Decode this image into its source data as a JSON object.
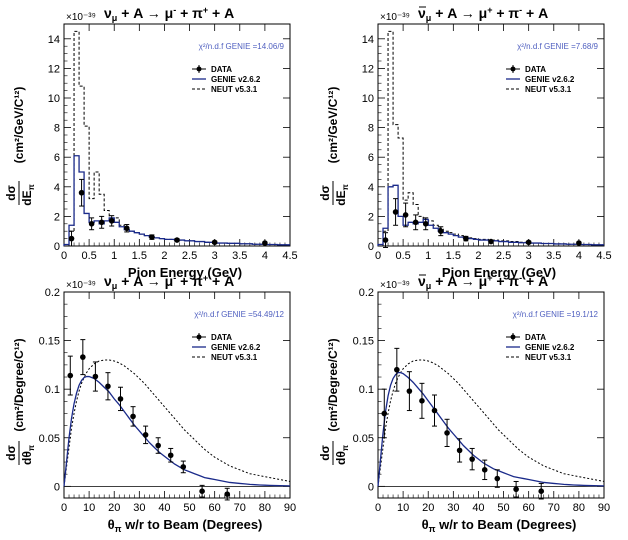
{
  "chart_data": [
    {
      "type": "line",
      "title": "ν_μ + A → μ⁻ + π⁺ + A",
      "title_parts": [
        "ν",
        "μ",
        " + A → μ",
        "-",
        " + π",
        "+",
        " + A"
      ],
      "title_bar": false,
      "xlabel": "Pion Energy (GeV)",
      "ylabel_num": "dσ",
      "ylabel_den": "dE",
      "ylabel_den_sub": "π",
      "ylabel_units": "(cm²/GeV/C¹²)",
      "scale_label": "×10⁻³⁹",
      "chi2_label": "χ²/n.d.f GENIE =14.06/9",
      "xlim": [
        0,
        4.5
      ],
      "ylim": [
        0,
        15
      ],
      "xticks": [
        0,
        0.5,
        1,
        1.5,
        2,
        2.5,
        3,
        3.5,
        4,
        4.5
      ],
      "xtick_labels": [
        "0",
        "0.5",
        "1",
        "1.5",
        "2",
        "2.5",
        "3",
        "3.5",
        "4",
        "4.5"
      ],
      "yticks": [
        0,
        2,
        4,
        6,
        8,
        10,
        12,
        14
      ],
      "ytick_labels": [
        "0",
        "2",
        "4",
        "6",
        "8",
        "10",
        "12",
        "14"
      ],
      "zero_line": false,
      "legend": [
        "DATA",
        "GENIE v2.6.2",
        "NEUT v5.3.1"
      ],
      "data": {
        "x": [
          0.15,
          0.35,
          0.55,
          0.75,
          0.95,
          1.25,
          1.75,
          2.25,
          3.0,
          4.0
        ],
        "y": [
          0.5,
          3.6,
          1.5,
          1.6,
          1.7,
          1.2,
          0.6,
          0.4,
          0.25,
          0.2
        ],
        "err": [
          0.5,
          0.9,
          0.4,
          0.4,
          0.35,
          0.25,
          0.15,
          0.1,
          0.08,
          0.06
        ]
      },
      "genie": {
        "edges": [
          0,
          0.1,
          0.2,
          0.3,
          0.4,
          0.5,
          0.6,
          0.7,
          0.8,
          0.9,
          1.0,
          1.1,
          1.2,
          1.3,
          1.4,
          1.5,
          1.6,
          1.7,
          1.8,
          1.9,
          2.0,
          2.2,
          2.4,
          2.6,
          2.8,
          3.0,
          3.25,
          3.5,
          3.75,
          4.0,
          4.25,
          4.5
        ],
        "values": [
          0.1,
          1.4,
          6.1,
          5.0,
          2.2,
          1.6,
          1.7,
          1.5,
          1.7,
          1.9,
          1.6,
          1.3,
          1.1,
          1.0,
          0.9,
          0.8,
          0.7,
          0.6,
          0.55,
          0.5,
          0.45,
          0.4,
          0.35,
          0.3,
          0.25,
          0.2,
          0.18,
          0.15,
          0.12,
          0.1,
          0.08
        ]
      },
      "neut": {
        "edges": [
          0,
          0.1,
          0.2,
          0.3,
          0.4,
          0.5,
          0.6,
          0.7,
          0.8,
          0.9,
          1.0,
          1.1,
          1.2,
          1.3,
          1.4,
          1.5,
          1.6,
          1.7,
          1.8,
          1.9,
          2.0,
          2.2,
          2.4,
          2.6,
          2.8,
          3.0,
          3.25,
          3.5,
          3.75,
          4.0,
          4.25,
          4.5
        ],
        "values": [
          0.0,
          1.0,
          14.5,
          10.8,
          8.1,
          3.2,
          5.0,
          3.5,
          2.4,
          1.6,
          1.9,
          1.4,
          1.2,
          1.0,
          0.9,
          0.8,
          0.7,
          0.6,
          0.55,
          0.5,
          0.45,
          0.4,
          0.35,
          0.3,
          0.25,
          0.2,
          0.17,
          0.14,
          0.12,
          0.1,
          0.08
        ]
      }
    },
    {
      "type": "line",
      "title": "ν̄_μ + A → μ⁺ + π⁻ + A",
      "title_parts": [
        "ν",
        "μ",
        " + A → μ",
        "+",
        " + π",
        "-",
        " + A"
      ],
      "title_bar": true,
      "xlabel": "Pion Energy (GeV)",
      "ylabel_num": "dσ",
      "ylabel_den": "dE",
      "ylabel_den_sub": "π",
      "ylabel_units": "(cm²/GeV/C¹²)",
      "scale_label": "×10⁻³⁹",
      "chi2_label": "χ²/n.d.f GENIE =7.68/9",
      "xlim": [
        0,
        4.5
      ],
      "ylim": [
        0,
        15
      ],
      "xticks": [
        0,
        0.5,
        1,
        1.5,
        2,
        2.5,
        3,
        3.5,
        4,
        4.5
      ],
      "xtick_labels": [
        "0",
        "0.5",
        "1",
        "1.5",
        "2",
        "2.5",
        "3",
        "3.5",
        "4",
        "4.5"
      ],
      "yticks": [
        0,
        2,
        4,
        6,
        8,
        10,
        12,
        14
      ],
      "ytick_labels": [
        "0",
        "2",
        "4",
        "6",
        "8",
        "10",
        "12",
        "14"
      ],
      "zero_line": false,
      "legend": [
        "DATA",
        "GENIE v2.6.2",
        "NEUT v5.3.1"
      ],
      "data": {
        "x": [
          0.15,
          0.35,
          0.55,
          0.75,
          0.95,
          1.25,
          1.75,
          2.25,
          3.0,
          4.0
        ],
        "y": [
          0.4,
          2.3,
          2.1,
          1.6,
          1.5,
          1.0,
          0.5,
          0.3,
          0.25,
          0.2
        ],
        "err": [
          0.5,
          0.9,
          0.8,
          0.5,
          0.4,
          0.3,
          0.15,
          0.1,
          0.08,
          0.06
        ]
      },
      "genie": {
        "edges": [
          0,
          0.1,
          0.2,
          0.3,
          0.4,
          0.5,
          0.6,
          0.7,
          0.8,
          0.9,
          1.0,
          1.1,
          1.2,
          1.3,
          1.4,
          1.5,
          1.6,
          1.7,
          1.8,
          1.9,
          2.0,
          2.2,
          2.4,
          2.6,
          2.8,
          3.0,
          3.25,
          3.5,
          3.75,
          4.0,
          4.25,
          4.5
        ],
        "values": [
          0.1,
          1.2,
          4.0,
          4.1,
          2.0,
          1.4,
          1.6,
          1.5,
          1.6,
          1.8,
          1.4,
          1.2,
          1.0,
          0.9,
          0.8,
          0.7,
          0.6,
          0.55,
          0.5,
          0.45,
          0.4,
          0.35,
          0.3,
          0.25,
          0.22,
          0.2,
          0.17,
          0.14,
          0.12,
          0.1,
          0.08
        ]
      },
      "neut": {
        "edges": [
          0,
          0.1,
          0.2,
          0.3,
          0.4,
          0.5,
          0.6,
          0.7,
          0.8,
          0.9,
          1.0,
          1.1,
          1.2,
          1.3,
          1.4,
          1.5,
          1.6,
          1.7,
          1.8,
          1.9,
          2.0,
          2.2,
          2.4,
          2.6,
          2.8,
          3.0,
          3.25,
          3.5,
          3.75,
          4.0,
          4.25,
          4.5
        ],
        "values": [
          0.0,
          1.0,
          14.5,
          8.2,
          7.3,
          3.1,
          3.6,
          2.8,
          2.0,
          1.6,
          1.7,
          1.4,
          1.2,
          1.0,
          0.9,
          0.8,
          0.7,
          0.6,
          0.55,
          0.5,
          0.45,
          0.4,
          0.35,
          0.3,
          0.25,
          0.2,
          0.17,
          0.14,
          0.12,
          0.1,
          0.08
        ]
      }
    },
    {
      "type": "line",
      "title": "ν_μ + A → μ⁻ + π⁺ + A",
      "title_parts": [
        "ν",
        "μ",
        " + A → μ",
        "-",
        " + π",
        "+",
        " + A"
      ],
      "title_bar": false,
      "xlabel": "θ_π w/r to Beam (Degrees)",
      "ylabel_num": "dσ",
      "ylabel_den": "dθ",
      "ylabel_den_sub": "π",
      "ylabel_units": "(cm²/Degree/C¹²)",
      "scale_label": "×10⁻³⁹",
      "chi2_label": "χ²/n.d.f GENIE =54.49/12",
      "xlim": [
        0,
        90
      ],
      "ylim": [
        -0.012,
        0.2
      ],
      "xticks": [
        0,
        10,
        20,
        30,
        40,
        50,
        60,
        70,
        80,
        90
      ],
      "xtick_labels": [
        "0",
        "10",
        "20",
        "30",
        "40",
        "50",
        "60",
        "70",
        "80",
        "90"
      ],
      "yticks": [
        0,
        0.05,
        0.1,
        0.15,
        0.2
      ],
      "ytick_labels": [
        "0",
        "0.05",
        "0.1",
        "0.15",
        "0.2"
      ],
      "zero_line": true,
      "legend": [
        "DATA",
        "GENIE v2.6.2",
        "NEUT v5.3.1"
      ],
      "data": {
        "x": [
          2.5,
          7.5,
          12.5,
          17.5,
          22.5,
          27.5,
          32.5,
          37.5,
          42.5,
          47.5,
          55,
          65
        ],
        "y": [
          0.114,
          0.133,
          0.113,
          0.103,
          0.09,
          0.072,
          0.053,
          0.042,
          0.032,
          0.02,
          -0.005,
          -0.008
        ],
        "err": [
          0.02,
          0.018,
          0.015,
          0.014,
          0.012,
          0.01,
          0.009,
          0.008,
          0.007,
          0.006,
          0.006,
          0.006
        ]
      },
      "genie_curve": {
        "x": [
          0,
          1,
          2,
          3,
          4,
          5,
          6,
          7,
          8,
          9,
          10,
          12,
          14,
          16,
          18,
          20,
          22,
          24,
          26,
          28,
          30,
          32,
          34,
          36,
          38,
          40,
          42,
          44,
          46,
          48,
          50,
          52,
          54,
          56,
          58,
          60,
          62,
          64,
          66,
          68,
          70,
          72,
          74,
          76,
          78,
          80,
          82,
          84,
          86,
          88,
          90
        ],
        "y": [
          0.0,
          0.025,
          0.05,
          0.07,
          0.085,
          0.096,
          0.104,
          0.109,
          0.112,
          0.113,
          0.113,
          0.111,
          0.107,
          0.102,
          0.097,
          0.09,
          0.084,
          0.077,
          0.07,
          0.063,
          0.057,
          0.051,
          0.045,
          0.04,
          0.035,
          0.031,
          0.027,
          0.023,
          0.02,
          0.017,
          0.015,
          0.013,
          0.011,
          0.009,
          0.008,
          0.007,
          0.006,
          0.005,
          0.004,
          0.0035,
          0.003,
          0.0025,
          0.002,
          0.0017,
          0.0014,
          0.0012,
          0.001,
          0.0008,
          0.0007,
          0.0006,
          0.0005
        ]
      },
      "neut_curve": {
        "x": [
          0,
          1,
          2,
          3,
          4,
          5,
          6,
          7,
          8,
          9,
          10,
          12,
          14,
          16,
          18,
          20,
          22,
          24,
          26,
          28,
          30,
          32,
          34,
          36,
          38,
          40,
          42,
          44,
          46,
          48,
          50,
          52,
          54,
          56,
          58,
          60,
          62,
          64,
          66,
          68,
          70,
          72,
          74,
          76,
          78,
          80,
          82,
          84,
          86,
          88,
          90
        ],
        "y": [
          0.0,
          0.02,
          0.04,
          0.06,
          0.075,
          0.088,
          0.098,
          0.106,
          0.112,
          0.117,
          0.121,
          0.126,
          0.129,
          0.13,
          0.13,
          0.129,
          0.127,
          0.124,
          0.12,
          0.116,
          0.111,
          0.106,
          0.1,
          0.094,
          0.088,
          0.082,
          0.076,
          0.07,
          0.064,
          0.058,
          0.053,
          0.048,
          0.043,
          0.038,
          0.034,
          0.03,
          0.027,
          0.024,
          0.021,
          0.019,
          0.017,
          0.015,
          0.013,
          0.012,
          0.011,
          0.01,
          0.009,
          0.008,
          0.007,
          0.006,
          0.005
        ]
      }
    },
    {
      "type": "line",
      "title": "ν̄_μ + A → μ⁺ + π⁻ + A",
      "title_parts": [
        "ν",
        "μ",
        " + A → μ",
        "+",
        " + π",
        "-",
        " + A"
      ],
      "title_bar": true,
      "xlabel": "θ_π w/r to Beam (Degrees)",
      "ylabel_num": "dσ",
      "ylabel_den": "dθ",
      "ylabel_den_sub": "π",
      "ylabel_units": "(cm²/Degree/C¹²)",
      "scale_label": "×10⁻³⁹",
      "chi2_label": "χ²/n.d.f GENIE =19.1/12",
      "xlim": [
        0,
        90
      ],
      "ylim": [
        -0.012,
        0.2
      ],
      "xticks": [
        0,
        10,
        20,
        30,
        40,
        50,
        60,
        70,
        80,
        90
      ],
      "xtick_labels": [
        "0",
        "10",
        "20",
        "30",
        "40",
        "50",
        "60",
        "70",
        "80",
        "90"
      ],
      "yticks": [
        0,
        0.05,
        0.1,
        0.15,
        0.2
      ],
      "ytick_labels": [
        "0",
        "0.05",
        "0.1",
        "0.15",
        "0.2"
      ],
      "zero_line": true,
      "legend": [
        "DATA",
        "GENIE v2.6.2",
        "NEUT v5.3.1"
      ],
      "data": {
        "x": [
          2.5,
          7.5,
          12.5,
          17.5,
          22.5,
          27.5,
          32.5,
          37.5,
          42.5,
          47.5,
          55,
          65
        ],
        "y": [
          0.075,
          0.12,
          0.098,
          0.088,
          0.078,
          0.055,
          0.037,
          0.028,
          0.017,
          0.008,
          -0.003,
          -0.005
        ],
        "err": [
          0.025,
          0.022,
          0.02,
          0.018,
          0.016,
          0.014,
          0.012,
          0.011,
          0.01,
          0.009,
          0.008,
          0.008
        ]
      },
      "genie_curve": {
        "x": [
          0,
          1,
          2,
          3,
          4,
          5,
          6,
          7,
          8,
          9,
          10,
          12,
          14,
          16,
          18,
          20,
          22,
          24,
          26,
          28,
          30,
          32,
          34,
          36,
          38,
          40,
          42,
          44,
          46,
          48,
          50,
          52,
          54,
          56,
          58,
          60,
          62,
          64,
          66,
          68,
          70,
          72,
          74,
          76,
          78,
          80,
          82,
          84,
          86,
          88,
          90
        ],
        "y": [
          0.0,
          0.028,
          0.055,
          0.077,
          0.093,
          0.104,
          0.111,
          0.115,
          0.117,
          0.117,
          0.116,
          0.112,
          0.107,
          0.101,
          0.095,
          0.088,
          0.081,
          0.074,
          0.067,
          0.06,
          0.054,
          0.048,
          0.042,
          0.037,
          0.032,
          0.028,
          0.024,
          0.021,
          0.018,
          0.016,
          0.014,
          0.012,
          0.01,
          0.009,
          0.008,
          0.007,
          0.006,
          0.005,
          0.004,
          0.0035,
          0.003,
          0.0025,
          0.002,
          0.0017,
          0.0014,
          0.0012,
          0.001,
          0.0008,
          0.0007,
          0.0006,
          0.0005
        ]
      },
      "neut_curve": {
        "x": [
          0,
          1,
          2,
          3,
          4,
          5,
          6,
          7,
          8,
          9,
          10,
          12,
          14,
          16,
          18,
          20,
          22,
          24,
          26,
          28,
          30,
          32,
          34,
          36,
          38,
          40,
          42,
          44,
          46,
          48,
          50,
          52,
          54,
          56,
          58,
          60,
          62,
          64,
          66,
          68,
          70,
          72,
          74,
          76,
          78,
          80,
          82,
          84,
          86,
          88,
          90
        ],
        "y": [
          0.0,
          0.02,
          0.04,
          0.06,
          0.075,
          0.088,
          0.098,
          0.106,
          0.112,
          0.117,
          0.121,
          0.126,
          0.129,
          0.13,
          0.13,
          0.129,
          0.127,
          0.124,
          0.12,
          0.116,
          0.111,
          0.106,
          0.1,
          0.094,
          0.088,
          0.082,
          0.076,
          0.07,
          0.064,
          0.058,
          0.053,
          0.048,
          0.043,
          0.038,
          0.034,
          0.03,
          0.027,
          0.024,
          0.021,
          0.019,
          0.017,
          0.015,
          0.013,
          0.012,
          0.011,
          0.01,
          0.009,
          0.008,
          0.007,
          0.006,
          0.005
        ]
      }
    }
  ],
  "colors": {
    "genie": "#1a2a8a",
    "neut": "#000000",
    "data": "#000000",
    "chi2_text": "#5060c0"
  }
}
